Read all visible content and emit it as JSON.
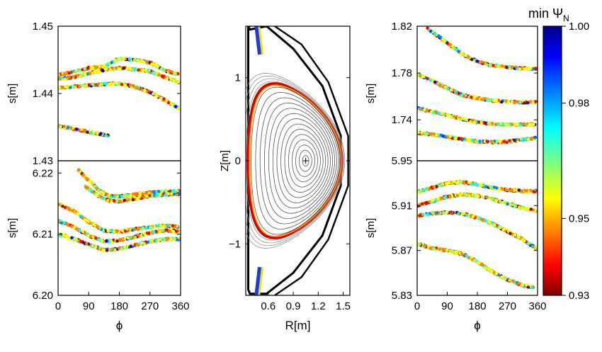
{
  "colorbar": {
    "label": "min Ψ",
    "label_subscript": "N",
    "min": 0.93,
    "max": 1.0,
    "ticks": [
      "1.00",
      "0.98",
      "0.95",
      "0.93"
    ],
    "tick_values": [
      1.0,
      0.98,
      0.95,
      0.93
    ],
    "colormap": "jet",
    "colormap_stops": [
      "#7f0000",
      "#ff0000",
      "#ff8000",
      "#ffff00",
      "#80ff80",
      "#00ffff",
      "#0080ff",
      "#0000ff",
      "#00007f"
    ]
  },
  "chart_data": [
    {
      "id": "left-top",
      "type": "scatter",
      "ylabel": "s[m]",
      "xlim": [
        0,
        360
      ],
      "ylim": [
        1.43,
        1.45
      ],
      "yticks": [
        "1.45",
        "1.44",
        "1.43"
      ],
      "ytick_values": [
        1.45,
        1.44,
        1.43
      ],
      "bands": [
        {
          "x": [
            0,
            45,
            90,
            135,
            180,
            225,
            270,
            315,
            355
          ],
          "y": [
            1.4428,
            1.4432,
            1.4438,
            1.444,
            1.4452,
            1.445,
            1.4446,
            1.4434,
            1.4428
          ]
        },
        {
          "x": [
            0,
            45,
            90,
            135,
            180,
            225,
            270,
            315,
            355
          ],
          "y": [
            1.4422,
            1.4424,
            1.443,
            1.4435,
            1.4438,
            1.4436,
            1.4433,
            1.4424,
            1.4417
          ]
        },
        {
          "x": [
            0,
            45,
            90,
            135,
            180,
            225,
            270,
            315,
            355
          ],
          "y": [
            1.4408,
            1.441,
            1.4412,
            1.4414,
            1.4415,
            1.441,
            1.4402,
            1.439,
            1.4378
          ]
        },
        {
          "x": [
            0,
            40,
            80,
            120,
            150
          ],
          "y": [
            1.4352,
            1.4348,
            1.4344,
            1.434,
            1.4337
          ]
        }
      ]
    },
    {
      "id": "left-bottom",
      "type": "scatter",
      "ylabel": "s[m]",
      "xlabel": "ϕ",
      "xlim": [
        0,
        360
      ],
      "ylim": [
        6.2,
        6.222
      ],
      "xticks": [
        "0",
        "90",
        "180",
        "270",
        "360"
      ],
      "xtick_values": [
        0,
        90,
        180,
        270,
        360
      ],
      "yticks": [
        "6.22",
        "6.21",
        "6.20"
      ],
      "ytick_values": [
        6.22,
        6.21,
        6.2
      ],
      "bands": [
        {
          "x": [
            60,
            90,
            120,
            150,
            180,
            225,
            270,
            315,
            355
          ],
          "y": [
            6.2205,
            6.2188,
            6.2172,
            6.2162,
            6.2162,
            6.2165,
            6.2168,
            6.217,
            6.217
          ]
        },
        {
          "x": [
            80,
            120,
            150,
            180,
            225,
            270,
            315,
            355
          ],
          "y": [
            6.2178,
            6.2162,
            6.2155,
            6.2153,
            6.2158,
            6.2162,
            6.2165,
            6.2166
          ]
        },
        {
          "x": [
            0,
            45,
            90,
            135,
            180,
            225,
            270,
            315,
            355
          ],
          "y": [
            6.215,
            6.2138,
            6.212,
            6.2106,
            6.2104,
            6.2108,
            6.2112,
            6.2114,
            6.2112
          ]
        },
        {
          "x": [
            0,
            45,
            90,
            135,
            180,
            225,
            270,
            315,
            355
          ],
          "y": [
            6.2122,
            6.2112,
            6.2098,
            6.2088,
            6.209,
            6.2096,
            6.2102,
            6.2106,
            6.2105
          ]
        },
        {
          "x": [
            0,
            45,
            90,
            135,
            180,
            225,
            270,
            315,
            355
          ],
          "y": [
            6.21,
            6.2093,
            6.2083,
            6.2074,
            6.2076,
            6.2082,
            6.2088,
            6.2092,
            6.2092
          ]
        }
      ]
    },
    {
      "id": "middle",
      "type": "contour",
      "xlabel": "R[m]",
      "ylabel": "Z[m]",
      "xlim": [
        0.33,
        1.58
      ],
      "ylim": [
        -1.62,
        1.62
      ],
      "xticks": [
        "0.6",
        "0.9",
        "1.2",
        "1.5"
      ],
      "xtick_values": [
        0.6,
        0.9,
        1.2,
        1.5
      ],
      "yticks": [
        "1",
        "0",
        "−1"
      ],
      "ytick_values": [
        1,
        0,
        -1
      ],
      "magnetic_axis": {
        "R": 1.05,
        "Z": 0.0
      },
      "separatrix": {
        "R0": 0.92,
        "a": 0.56,
        "kappa": 1.65,
        "delta": 0.45
      }
    },
    {
      "id": "right-top",
      "type": "scatter",
      "ylabel": "s[m]",
      "xlim": [
        0,
        360
      ],
      "ylim": [
        1.705,
        1.82
      ],
      "yticks": [
        "1.82",
        "1.78",
        "1.74"
      ],
      "ytick_values": [
        1.82,
        1.78,
        1.74
      ],
      "bands": [
        {
          "x": [
            30,
            90,
            135,
            180,
            225,
            270,
            315,
            355
          ],
          "y": [
            1.818,
            1.806,
            1.796,
            1.79,
            1.7865,
            1.785,
            1.784,
            1.7835
          ]
        },
        {
          "x": [
            0,
            45,
            90,
            135,
            180,
            225,
            270,
            315,
            355
          ],
          "y": [
            1.779,
            1.7735,
            1.767,
            1.761,
            1.7585,
            1.7565,
            1.7555,
            1.755,
            1.755
          ]
        },
        {
          "x": [
            0,
            45,
            90,
            135,
            180,
            225,
            270,
            315,
            355
          ],
          "y": [
            1.75,
            1.747,
            1.744,
            1.7405,
            1.738,
            1.7365,
            1.736,
            1.736,
            1.736
          ]
        },
        {
          "x": [
            0,
            45,
            90,
            135,
            180,
            225,
            270,
            315,
            355
          ],
          "y": [
            1.729,
            1.7275,
            1.7255,
            1.7235,
            1.7215,
            1.721,
            1.7215,
            1.723,
            1.7245
          ]
        }
      ]
    },
    {
      "id": "right-bottom",
      "type": "scatter",
      "ylabel": "s[m]",
      "xlabel": "ϕ",
      "xlim": [
        0,
        360
      ],
      "ylim": [
        5.83,
        5.95
      ],
      "xticks": [
        "0",
        "90",
        "180",
        "270",
        "360"
      ],
      "xtick_values": [
        0,
        90,
        180,
        270,
        360
      ],
      "yticks": [
        "5.95",
        "5.91",
        "5.87",
        "5.83"
      ],
      "ytick_values": [
        5.95,
        5.91,
        5.87,
        5.83
      ],
      "bands": [
        {
          "x": [
            0,
            45,
            90,
            135,
            180,
            225,
            270,
            315,
            355
          ],
          "y": [
            5.922,
            5.926,
            5.93,
            5.931,
            5.929,
            5.926,
            5.924,
            5.923,
            5.923
          ]
        },
        {
          "x": [
            0,
            45,
            90,
            135,
            180,
            225,
            270,
            315,
            355
          ],
          "y": [
            5.91,
            5.914,
            5.918,
            5.92,
            5.919,
            5.916,
            5.912,
            5.908,
            5.905
          ]
        },
        {
          "x": [
            0,
            45,
            90,
            135,
            180,
            225,
            270,
            315,
            355
          ],
          "y": [
            5.901,
            5.903,
            5.904,
            5.903,
            5.899,
            5.894,
            5.887,
            5.88,
            5.872
          ]
        },
        {
          "x": [
            0,
            45,
            90,
            135,
            180,
            225,
            270,
            315,
            350
          ],
          "y": [
            5.876,
            5.872,
            5.87,
            5.867,
            5.86,
            5.851,
            5.844,
            5.839,
            5.837
          ]
        }
      ]
    }
  ]
}
